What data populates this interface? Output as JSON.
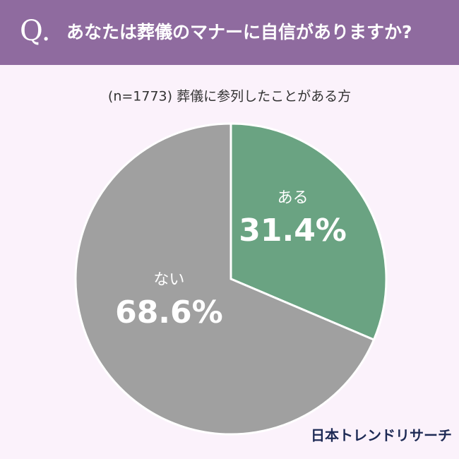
{
  "chart_data": {
    "type": "pie",
    "q_label": "Q.",
    "title": "あなたは葬儀のマナーに自信がありますか?",
    "subtitle": "(n=1773) 葬儀に参列したことがある方",
    "categories": [
      "ある",
      "ない"
    ],
    "values": [
      31.4,
      68.6
    ],
    "value_labels": [
      "31.4%",
      "68.6%"
    ],
    "colors": [
      "#6aa382",
      "#a0a0a0"
    ],
    "source": "日本トレンドリサーチ"
  }
}
